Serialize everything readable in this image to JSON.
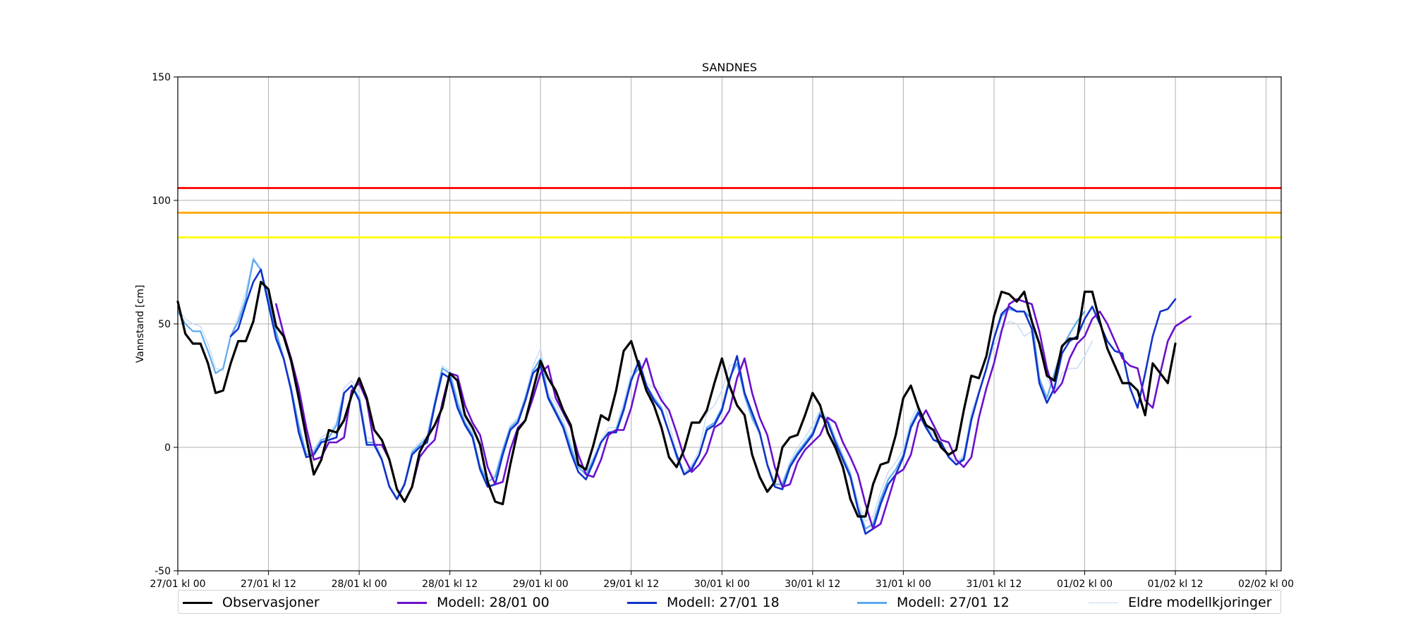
{
  "chart_data": {
    "type": "line",
    "title": "SANDNES",
    "xlabel": "",
    "ylabel": "Vannstand [cm]",
    "ylim": [
      -50,
      150
    ],
    "xlim_hours": [
      0,
      146
    ],
    "y_ticks": [
      -50,
      0,
      50,
      100,
      150
    ],
    "x_ticks": [
      {
        "h": 0,
        "label": "27/01 kl 00"
      },
      {
        "h": 12,
        "label": "27/01 kl 12"
      },
      {
        "h": 24,
        "label": "28/01 kl 00"
      },
      {
        "h": 36,
        "label": "28/01 kl 12"
      },
      {
        "h": 48,
        "label": "29/01 kl 00"
      },
      {
        "h": 60,
        "label": "29/01 kl 12"
      },
      {
        "h": 72,
        "label": "30/01 kl 00"
      },
      {
        "h": 84,
        "label": "30/01 kl 12"
      },
      {
        "h": 96,
        "label": "31/01 kl 00"
      },
      {
        "h": 108,
        "label": "31/01 kl 12"
      },
      {
        "h": 120,
        "label": "01/02 kl 00"
      },
      {
        "h": 132,
        "label": "01/02 kl 12"
      },
      {
        "h": 144,
        "label": "02/02 kl 00"
      }
    ],
    "grid": true,
    "thresholds": [
      {
        "value": 105,
        "color": "#ff0000"
      },
      {
        "value": 95,
        "color": "#ffa500"
      },
      {
        "value": 85,
        "color": "#ffff00"
      }
    ],
    "legend_position": "bottom",
    "series": [
      {
        "name": "Eldre modellkjoringer",
        "color": "#c6dbf5",
        "width": 1.4,
        "start": 0,
        "values": [
          56,
          52,
          50,
          49,
          42,
          32,
          31,
          45,
          53,
          63,
          77,
          72,
          60,
          47,
          37,
          24,
          8,
          -2,
          -1,
          4,
          6,
          10,
          24,
          27,
          22,
          4,
          3,
          -4,
          -15,
          -20,
          -14,
          -1,
          2,
          5,
          19,
          33,
          31,
          20,
          12,
          6,
          -7,
          -13,
          -11,
          -1,
          9,
          12,
          21,
          33,
          40,
          22,
          18,
          11,
          2,
          -6,
          -9,
          -4,
          3,
          8,
          8,
          18,
          30,
          34,
          26,
          24,
          22,
          10,
          -2,
          -10,
          -7,
          -1,
          14,
          17,
          23,
          33,
          34,
          20,
          11,
          5,
          -8,
          -14,
          -14,
          -6,
          0,
          4,
          9,
          15,
          12,
          4,
          -3,
          -10,
          -22,
          -30,
          -28,
          -18,
          -10,
          -6,
          -1,
          11,
          17,
          10,
          5,
          2,
          -3,
          -6,
          -3,
          14,
          23,
          32,
          41,
          48,
          51,
          50,
          45,
          47,
          42,
          28,
          22,
          30,
          32,
          32,
          37,
          43
        ]
      },
      {
        "name": "Modell: 27/01 12",
        "color": "#5aaaf0",
        "width": 2.2,
        "start": 0,
        "values": [
          55,
          50,
          47,
          47,
          39,
          30,
          32,
          45,
          51,
          60,
          76,
          72,
          60,
          47,
          36,
          24,
          9,
          -3,
          -2,
          3,
          4,
          9,
          22,
          25,
          20,
          2,
          2,
          -5,
          -16,
          -21,
          -15,
          -2,
          1,
          4,
          18,
          32,
          30,
          18,
          10,
          5,
          -8,
          -14,
          -12,
          -1,
          8,
          11,
          20,
          31,
          36,
          21,
          15,
          9,
          0,
          -8,
          -11,
          -5,
          2,
          6,
          7,
          16,
          28,
          32,
          25,
          20,
          16,
          6,
          -4,
          -11,
          -8,
          -3,
          8,
          10,
          16,
          28,
          34,
          21,
          12,
          6,
          -7,
          -15,
          -15,
          -7,
          -2,
          2,
          6,
          14,
          11,
          3,
          -4,
          -11,
          -24,
          -33,
          -31,
          -21,
          -13,
          -9,
          -3,
          9,
          15,
          9,
          3,
          1,
          -4,
          -7,
          -4,
          12,
          22,
          32,
          44,
          53,
          56,
          55,
          55,
          52,
          28,
          20,
          30,
          40,
          46,
          51,
          55
        ]
      },
      {
        "name": "Modell: 27/01 18",
        "color": "#1033c8",
        "width": 2.6,
        "start": 7,
        "values": [
          45,
          48,
          58,
          67,
          72,
          58,
          44,
          36,
          23,
          6,
          -4,
          -3,
          2,
          3,
          4,
          22,
          25,
          19,
          1,
          1,
          -5,
          -16,
          -21,
          -15,
          -3,
          0,
          2,
          17,
          30,
          28,
          16,
          9,
          4,
          -9,
          -16,
          -15,
          -3,
          7,
          10,
          19,
          30,
          33,
          20,
          14,
          8,
          -2,
          -10,
          -13,
          -6,
          2,
          6,
          6,
          15,
          27,
          35,
          25,
          19,
          15,
          6,
          -3,
          -11,
          -9,
          -3,
          7,
          9,
          15,
          27,
          37,
          22,
          14,
          6,
          -7,
          -16,
          -17,
          -8,
          -3,
          1,
          5,
          13,
          10,
          2,
          -5,
          -12,
          -25,
          -35,
          -33,
          -23,
          -15,
          -11,
          -4,
          8,
          14,
          8,
          3,
          2,
          -4,
          -7,
          -5,
          11,
          22,
          32,
          44,
          54,
          57,
          55,
          55,
          48,
          26,
          18,
          24,
          38,
          43,
          45,
          52,
          57,
          50,
          43,
          39,
          38,
          24,
          16,
          30,
          45,
          55,
          56,
          60
        ]
      },
      {
        "name": "Modell: 28/01 00",
        "color": "#6a0fce",
        "width": 2.6,
        "start": 13,
        "values": [
          58,
          46,
          36,
          24,
          8,
          -5,
          -4,
          2,
          2,
          4,
          23,
          26,
          19,
          1,
          1,
          -5,
          -17,
          -22,
          -16,
          -4,
          0,
          3,
          18,
          30,
          29,
          17,
          10,
          5,
          -8,
          -15,
          -14,
          -1,
          8,
          11,
          20,
          30,
          33,
          20,
          14,
          8,
          -3,
          -11,
          -12,
          -5,
          5,
          7,
          7,
          16,
          29,
          36,
          25,
          19,
          15,
          6,
          -4,
          -10,
          -7,
          -2,
          8,
          10,
          15,
          28,
          36,
          22,
          12,
          5,
          -8,
          -16,
          -15,
          -6,
          -1,
          2,
          5,
          12,
          10,
          2,
          -4,
          -11,
          -23,
          -33,
          -31,
          -21,
          -11,
          -9,
          -3,
          10,
          15,
          9,
          3,
          2,
          -5,
          -8,
          -4,
          12,
          24,
          34,
          47,
          58,
          60,
          59,
          58,
          47,
          32,
          22,
          26,
          36,
          42,
          45,
          52,
          55,
          50,
          43,
          36,
          33,
          32,
          19,
          16,
          30,
          43,
          49,
          51,
          53
        ]
      },
      {
        "name": "Observasjoner",
        "color": "#000000",
        "width": 3.2,
        "start": 0,
        "values": [
          59,
          46,
          42,
          42,
          34,
          22,
          23,
          34,
          43,
          43,
          51,
          67,
          64,
          49,
          45,
          35,
          20,
          4,
          -11,
          -5,
          7,
          6,
          11,
          21,
          28,
          20,
          7,
          3,
          -5,
          -17,
          -22,
          -16,
          -2,
          4,
          9,
          16,
          30,
          27,
          13,
          8,
          1,
          -14,
          -22,
          -23,
          -7,
          7,
          11,
          23,
          35,
          28,
          23,
          15,
          9,
          -7,
          -9,
          1,
          13,
          11,
          23,
          39,
          43,
          33,
          23,
          17,
          8,
          -4,
          -8,
          -1,
          10,
          10,
          15,
          26,
          36,
          25,
          17,
          13,
          -3,
          -12,
          -18,
          -14,
          0,
          4,
          5,
          13,
          22,
          17,
          6,
          0,
          -8,
          -21,
          -28,
          -28,
          -15,
          -7,
          -6,
          5,
          20,
          25,
          16,
          9,
          7,
          0,
          -3,
          -1,
          15,
          29,
          28,
          37,
          53,
          63,
          62,
          59,
          63,
          51,
          42,
          29,
          27,
          41,
          44,
          44,
          63,
          63,
          51,
          40,
          33,
          26,
          26,
          23,
          13,
          34,
          30,
          26,
          42
        ]
      }
    ]
  }
}
